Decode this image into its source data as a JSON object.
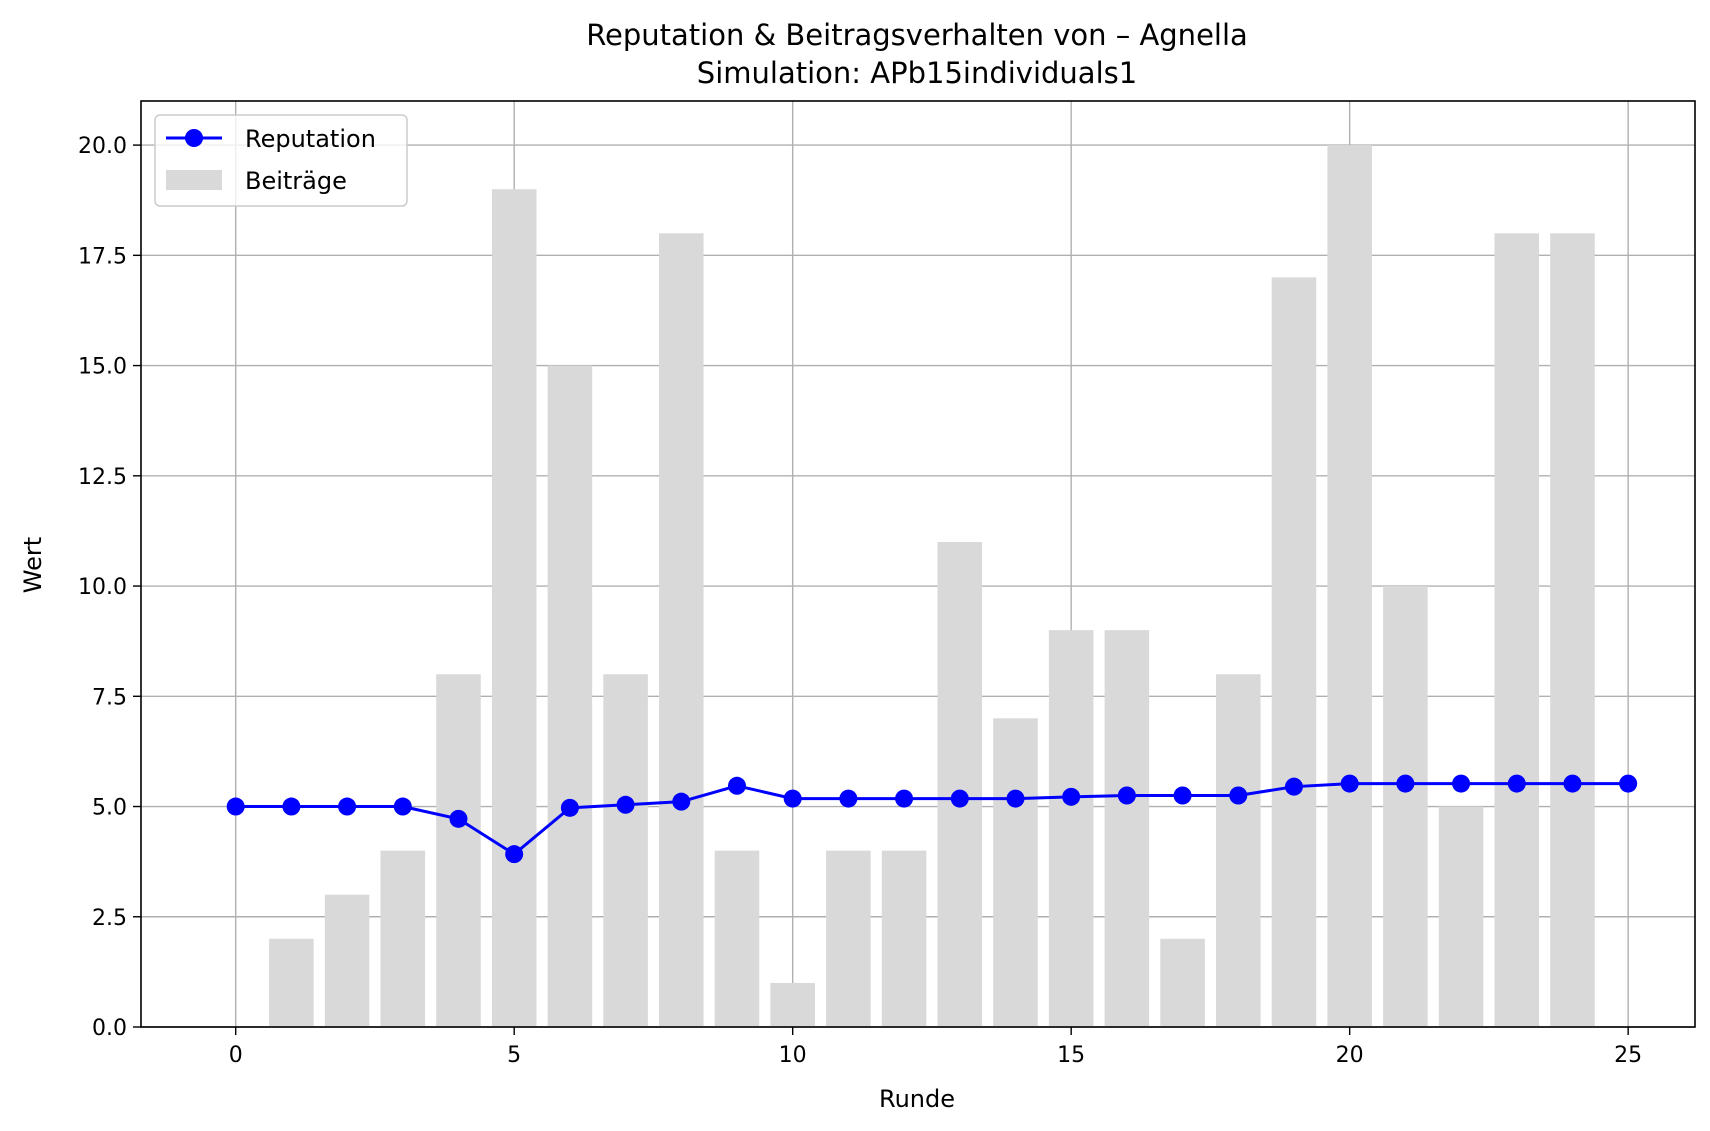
{
  "chart_data": {
    "type": "bar",
    "title": "Reputation & Beitragsverhalten von – Agnella",
    "subtitle": "Simulation: APb15individuals1",
    "xlabel": "Runde",
    "ylabel": "Wert",
    "xlim": [
      -1.7,
      26.2
    ],
    "ylim": [
      0,
      21
    ],
    "x_ticks": [
      "0",
      "5",
      "10",
      "15",
      "20",
      "25"
    ],
    "y_ticks": [
      "0.0",
      "2.5",
      "5.0",
      "7.5",
      "10.0",
      "12.5",
      "15.0",
      "17.5",
      "20.0"
    ],
    "grid": true,
    "legend_position": "top-left",
    "series": [
      {
        "name": "Beiträge",
        "kind": "bar",
        "color": "#d9d9d9",
        "x": [
          1,
          2,
          3,
          4,
          5,
          6,
          7,
          8,
          9,
          10,
          11,
          12,
          13,
          14,
          15,
          16,
          17,
          18,
          19,
          20,
          21,
          22,
          23,
          24
        ],
        "values": [
          2,
          3,
          4,
          8,
          19,
          15,
          8,
          18,
          4,
          1,
          4,
          4,
          11,
          7,
          9,
          9,
          2,
          8,
          17,
          20,
          10,
          5,
          18,
          18
        ]
      },
      {
        "name": "Reputation",
        "kind": "line",
        "marker": "circle",
        "color": "#0000ff",
        "x": [
          0,
          1,
          2,
          3,
          4,
          5,
          6,
          7,
          8,
          9,
          10,
          11,
          12,
          13,
          14,
          15,
          16,
          17,
          18,
          19,
          20,
          21,
          22,
          23,
          24,
          25
        ],
        "values": [
          5.0,
          5.0,
          5.0,
          5.0,
          4.72,
          3.92,
          4.97,
          5.04,
          5.11,
          5.47,
          5.18,
          5.18,
          5.18,
          5.18,
          5.18,
          5.22,
          5.25,
          5.25,
          5.25,
          5.45,
          5.52,
          5.52,
          5.52,
          5.52,
          5.52,
          5.52
        ]
      }
    ]
  }
}
